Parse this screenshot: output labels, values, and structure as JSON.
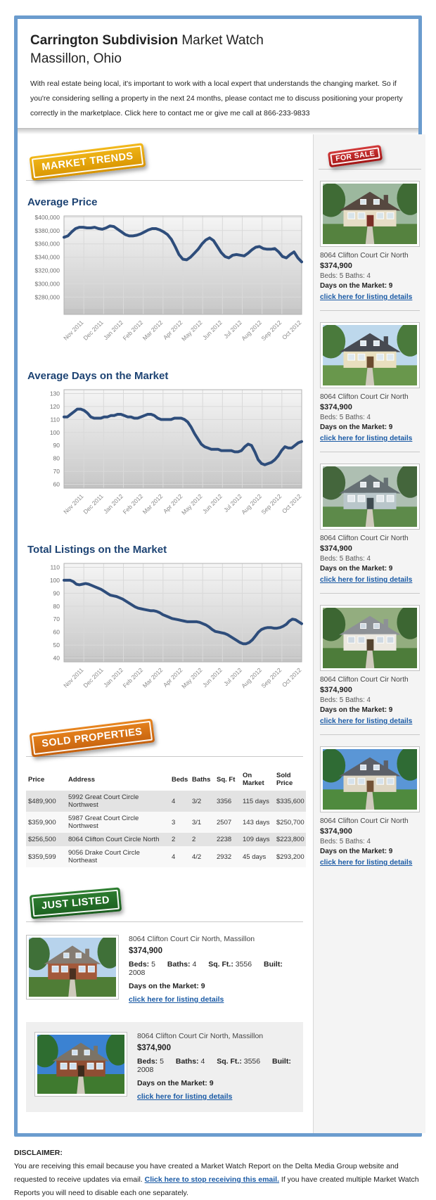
{
  "header": {
    "title_bold": "Carrington Subdivision",
    "title_rest": " Market Watch",
    "subtitle": "Massillon, Ohio",
    "intro_pre": "With real estate being local, it's important to work with a local expert that understands the changing market. So if you're considering selling a property in the next 24 months, please contact me to discuss positioning your property correctly in the marketplace. ",
    "intro_link": "Click here to contact me",
    "intro_post": " or give me call at 866-233-9833"
  },
  "badges": {
    "market_trends": "MARKET TRENDS",
    "for_sale": "FOR SALE",
    "sold": "SOLD PROPERTIES",
    "just_listed": "JUST LISTED"
  },
  "colors": {
    "frame_blue": "#6b9cce",
    "heading_navy": "#1d4373",
    "chart_line": "#2e4d7b",
    "link_blue": "#1a5aa5",
    "badge_gold": "#e2a30d",
    "badge_red": "#bb2525",
    "badge_orange": "#d66f15",
    "badge_green": "#256f28"
  },
  "chart_data": [
    {
      "type": "line",
      "title": "Average Price",
      "xlabel": "",
      "ylabel": "",
      "x_labels": [
        "Nov 2011",
        "Dec 2011",
        "Jan 2012",
        "Feb 2012",
        "Mar 2012",
        "Apr 2012",
        "May 2012",
        "Jun 2012",
        "Jul 2012",
        "Aug 2012",
        "Sep 2012",
        "Oct 2012"
      ],
      "ylim": [
        254000,
        402000
      ],
      "yticks": [
        400000,
        380000,
        360000,
        340000,
        320000,
        300000,
        280000
      ],
      "ytick_labels": [
        "$400,000",
        "$380,000",
        "$360,000",
        "$340,000",
        "$320,000",
        "$300,000",
        "$280,000"
      ],
      "grid": true,
      "values": [
        370000,
        372000,
        378000,
        383000,
        385000,
        385000,
        384000,
        384000,
        385000,
        383000,
        382000,
        384000,
        387000,
        386000,
        382000,
        378000,
        374000,
        372000,
        372000,
        373000,
        375000,
        378000,
        381000,
        383000,
        383000,
        381000,
        378000,
        374000,
        367000,
        356000,
        344000,
        337000,
        336000,
        340000,
        346000,
        352000,
        360000,
        366000,
        369000,
        365000,
        356000,
        347000,
        341000,
        339000,
        343000,
        344000,
        343000,
        342000,
        346000,
        351000,
        355000,
        356000,
        353000,
        352000,
        352000,
        353000,
        348000,
        341000,
        339000,
        344000,
        348000,
        339000,
        333000
      ]
    },
    {
      "type": "line",
      "title": "Average Days on the Market",
      "xlabel": "",
      "ylabel": "",
      "x_labels": [
        "Nov 2011",
        "Dec 2011",
        "Jan 2012",
        "Feb 2012",
        "Mar 2012",
        "Apr 2012",
        "May 2012",
        "Jun 2012",
        "Jul 2012",
        "Aug 2012",
        "Sep 2012",
        "Oct 2012"
      ],
      "ylim": [
        57,
        133
      ],
      "yticks": [
        130,
        120,
        110,
        100,
        90,
        80,
        70,
        60
      ],
      "ytick_labels": [
        "130",
        "120",
        "110",
        "100",
        "90",
        "80",
        "70",
        "60"
      ],
      "grid": true,
      "values": [
        112,
        112,
        114,
        116,
        118,
        118,
        117,
        115,
        112,
        111,
        111,
        111,
        112,
        112,
        113,
        113,
        114,
        114,
        113,
        112,
        112,
        111,
        111,
        112,
        113,
        114,
        114,
        113,
        111,
        110,
        110,
        110,
        110,
        111,
        111,
        111,
        110,
        108,
        104,
        99,
        95,
        91,
        89,
        88,
        87,
        87,
        87,
        86,
        86,
        86,
        86,
        85,
        85,
        86,
        89,
        91,
        90,
        85,
        79,
        76,
        75,
        76,
        77,
        79,
        82,
        86,
        89,
        88,
        88,
        90,
        92,
        93
      ]
    },
    {
      "type": "line",
      "title": "Total Listings on the Market",
      "xlabel": "",
      "ylabel": "",
      "x_labels": [
        "Nov 2011",
        "Dec 2011",
        "Jan 2012",
        "Feb 2012",
        "Mar 2012",
        "Apr 2012",
        "May 2012",
        "Jun 2012",
        "Jul 2012",
        "Aug 2012",
        "Sep 2012",
        "Oct 2012"
      ],
      "ylim": [
        37,
        113
      ],
      "yticks": [
        110,
        100,
        90,
        80,
        70,
        60,
        50,
        40
      ],
      "ytick_labels": [
        "110",
        "100",
        "90",
        "80",
        "70",
        "60",
        "50",
        "40"
      ],
      "grid": true,
      "values": [
        100,
        100,
        100,
        99,
        97,
        96.5,
        97,
        97.5,
        97,
        96,
        95,
        94,
        93,
        91.5,
        90,
        88.5,
        88,
        87.5,
        86.5,
        85.5,
        84,
        82.5,
        81,
        79.5,
        78.5,
        78,
        77.5,
        77,
        76.5,
        76.5,
        76,
        75,
        73.5,
        72.5,
        71.5,
        70.5,
        70,
        69.5,
        69,
        68.5,
        68,
        68,
        68,
        68,
        67.5,
        66.5,
        65.5,
        64,
        62,
        60.5,
        60,
        59.5,
        59,
        58,
        56.5,
        55,
        53.5,
        52,
        51,
        51,
        52,
        54,
        57,
        60,
        62,
        63,
        63.5,
        63.5,
        63,
        63,
        63.5,
        64.5,
        66,
        68.5,
        70,
        69.5,
        68,
        66.5
      ]
    }
  ],
  "sold_table": {
    "columns": [
      "Price",
      "Address",
      "Beds",
      "Baths",
      "Sq. Ft",
      "On Market",
      "Sold Price"
    ],
    "rows": [
      [
        "$489,900",
        "5992 Great Court Circle Northwest",
        "4",
        "3/2",
        "3356",
        "115 days",
        "$335,600"
      ],
      [
        "$359,900",
        "5987 Great Court Circle Northwest",
        "3",
        "3/1",
        "2507",
        "143 days",
        "$250,700"
      ],
      [
        "$256,500",
        "8064 Clifton Court Circle North",
        "2",
        "2",
        "2238",
        "109 days",
        "$223,800"
      ],
      [
        "$359,599",
        "9056 Drake Court Circle Northeast",
        "4",
        "4/2",
        "2932",
        "45 days",
        "$293,200"
      ]
    ]
  },
  "for_sale_listings": [
    {
      "address": "8064 Clifton Court Cir North",
      "price": "$374,900",
      "beds_baths": "Beds: 5 Baths: 4",
      "days": "Days on the Market: 9",
      "link": "click here for listing details",
      "photo": {
        "name": "house-photo",
        "sky": "#9cb89e",
        "tree": "#3f6b35",
        "wall": "#e6ddc6",
        "roof": "#564840",
        "grass": "#55823f",
        "window": "#d8e4ea",
        "door": "#7a2e26"
      }
    },
    {
      "address": "8064 Clifton Court Cir North",
      "price": "$374,900",
      "beds_baths": "Beds: 5 Baths: 4",
      "days": "Days on the Market: 9",
      "link": "click here for listing details",
      "photo": {
        "name": "house-photo",
        "sky": "#bdd8ec",
        "tree": "#4a7a3c",
        "wall": "#e9dfbf",
        "roof": "#474a52",
        "grass": "#69974c",
        "window": "#dfe9f0",
        "door": "#6b4a2e"
      }
    },
    {
      "address": "8064 Clifton Court Cir North",
      "price": "$374,900",
      "beds_baths": "Beds: 5 Baths: 4",
      "days": "Days on the Market: 9",
      "link": "click here for listing details",
      "photo": {
        "name": "house-photo",
        "sky": "#aebfb2",
        "tree": "#44663c",
        "wall": "#b9c6ca",
        "roof": "#667074",
        "grass": "#5d8a4a",
        "window": "#e2e8ec",
        "door": "#3e4a50"
      }
    },
    {
      "address": "8064 Clifton Court Cir North",
      "price": "$374,900",
      "beds_baths": "Beds: 5 Baths: 4",
      "days": "Days on the Market: 9",
      "link": "click here for listing details",
      "photo": {
        "name": "house-photo",
        "sky": "#93ad7f",
        "tree": "#3c6632",
        "wall": "#ece8e0",
        "roof": "#8d9196",
        "grass": "#4d7c3a",
        "window": "#cfd9e2",
        "door": "#54432f"
      }
    },
    {
      "address": "8064 Clifton Court Cir North",
      "price": "$374,900",
      "beds_baths": "Beds: 5 Baths: 4",
      "days": "Days on the Market: 9",
      "link": "click here for listing details",
      "photo": {
        "name": "house-photo",
        "sky": "#5a96d6",
        "tree": "#2f6b34",
        "wall": "#ded6c3",
        "roof": "#5c6068",
        "grass": "#4f8a3e",
        "window": "#d6e2ec",
        "door": "#735236"
      }
    }
  ],
  "just_listed_listings": [
    {
      "title": "8064 Clifton Court Cir North, Massillon",
      "price": "$374,900",
      "beds_label": "Beds:",
      "beds": "5",
      "baths_label": "Baths:",
      "baths": "4",
      "sqft_label": "Sq. Ft.:",
      "sqft": "3556",
      "built_label": "Built:",
      "built": "2008",
      "days": "Days on the Market: 9",
      "link": "click here for listing details",
      "photo": {
        "name": "house-photo",
        "sky": "#b7d3ec",
        "tree": "#3f7038",
        "wall": "#a3593a",
        "roof": "#857c72",
        "grass": "#4f7d36",
        "window": "#cfe0ef",
        "door": "#4a3020"
      }
    },
    {
      "title": "8064 Clifton Court Cir North, Massillon",
      "price": "$374,900",
      "beds_label": "Beds:",
      "beds": "5",
      "baths_label": "Baths:",
      "baths": "4",
      "sqft_label": "Sq. Ft.:",
      "sqft": "3556",
      "built_label": "Built:",
      "built": "2008",
      "days": "Days on the Market: 9",
      "link": "click here for listing details",
      "photo": {
        "name": "house-photo",
        "sky": "#3b82d2",
        "tree": "#2e6d30",
        "wall": "#8f4e33",
        "roof": "#7b7366",
        "grass": "#3f7a2f",
        "window": "#cfe0ef",
        "door": "#3c2a1c"
      }
    }
  ],
  "disclaimer": {
    "title": "DISCLAIMER:",
    "pre": "You are receiving this email because you have created a Market Watch Report on the Delta Media Group website and requested to receive updates via email. ",
    "link": "Click here to stop receiving this email.",
    "post": " If you have created multiple Market Watch Reports you will need to disable each one separately."
  }
}
